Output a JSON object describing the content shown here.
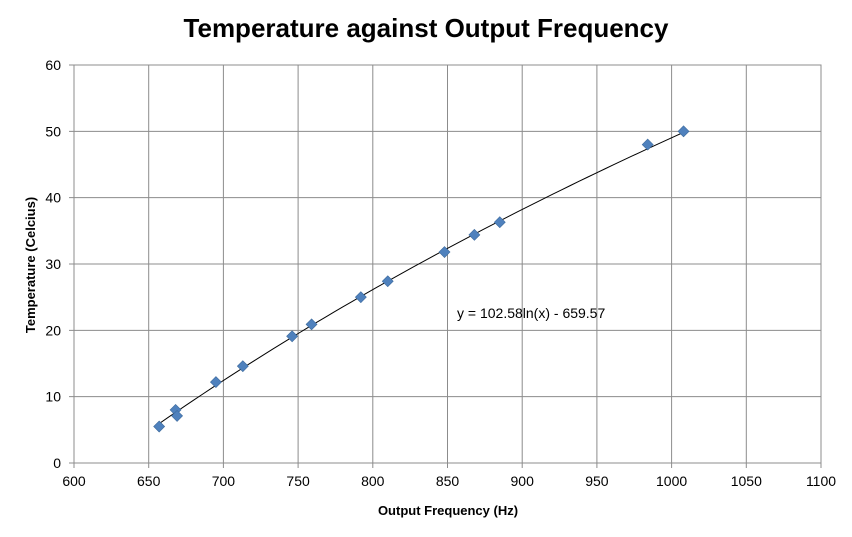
{
  "chart_data": {
    "type": "scatter",
    "title": "Temperature against Output Frequency",
    "xlabel": "Output Frequency (Hz)",
    "ylabel": "Temperature (Celcius)",
    "xlim": [
      600,
      1100
    ],
    "ylim": [
      0,
      60
    ],
    "xticks": [
      600,
      650,
      700,
      750,
      800,
      850,
      900,
      950,
      1000,
      1050,
      1100
    ],
    "yticks": [
      0,
      10,
      20,
      30,
      40,
      50,
      60
    ],
    "grid": true,
    "legend": "none",
    "series": [
      {
        "marker": "diamond",
        "color": "#4f81bd",
        "points": [
          [
            657,
            5.5
          ],
          [
            668,
            8.0
          ],
          [
            669,
            7.1
          ],
          [
            695,
            12.2
          ],
          [
            713,
            14.6
          ],
          [
            746,
            19.1
          ],
          [
            759,
            20.9
          ],
          [
            792,
            25.0
          ],
          [
            810,
            27.4
          ],
          [
            848,
            31.8
          ],
          [
            868,
            34.4
          ],
          [
            885,
            36.3
          ],
          [
            984,
            48.0
          ],
          [
            1008,
            50.0
          ]
        ]
      }
    ],
    "trendline": {
      "type": "log",
      "a": 102.58,
      "b": -659.57,
      "x_range": [
        657,
        1008
      ],
      "equation_label": "y = 102.58ln(x) - 659.57"
    }
  }
}
